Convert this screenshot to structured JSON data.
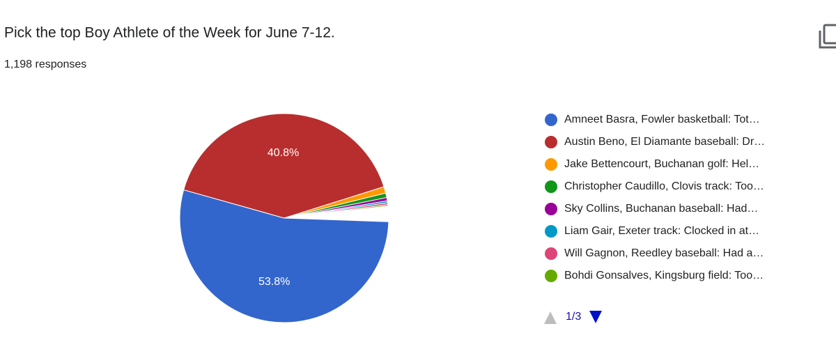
{
  "chart_data": {
    "type": "pie",
    "title": "Pick the top Boy Athlete of the Week for June 7-12.",
    "subtitle": "1,198 responses",
    "categories": [
      "Amneet Basra, Fowler basketball: Tot…",
      "Austin Beno, El Diamante baseball: Dr…",
      "Jake Bettencourt, Buchanan golf: Hel…",
      "Christopher Caudillo, Clovis track: Too…",
      "Sky Collins, Buchanan baseball: Had…",
      "Liam Gair, Exeter track: Clocked in at…",
      "Will Gagnon, Reedley baseball: Had a…",
      "Bohdi Gonsalves, Kingsburg field: Too…"
    ],
    "values": [
      53.8,
      40.8,
      1.0,
      0.7,
      0.5,
      0.3,
      0.3,
      0.2
    ],
    "value_labels": [
      "53.8%",
      "40.8%",
      null,
      null,
      null,
      null,
      null,
      null
    ],
    "colors": [
      "#3366cc",
      "#b82e2e",
      "#ff9900",
      "#109618",
      "#990099",
      "#0099c6",
      "#dd4477",
      "#66aa00"
    ],
    "legend": "right",
    "pager": "1/3"
  }
}
